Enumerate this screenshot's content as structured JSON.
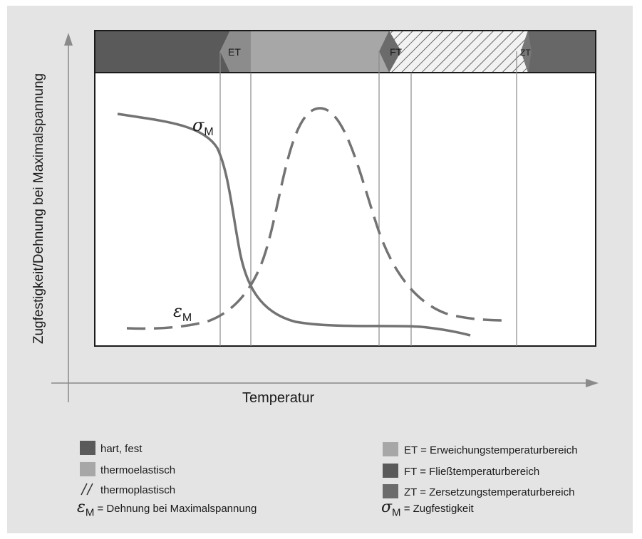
{
  "axes": {
    "y_label": "Zugfestigkeit/Dehnung bei Maximalspannung",
    "x_label": "Temperatur"
  },
  "band_markers": [
    {
      "id": "et",
      "label": "ET"
    },
    {
      "id": "ft",
      "label": "FT"
    },
    {
      "id": "zt",
      "label": "ZT"
    }
  ],
  "curves": {
    "sigma": {
      "symbol": "σ",
      "sub": "M"
    },
    "epsilon": {
      "symbol": "ε",
      "sub": "M"
    }
  },
  "legend": {
    "left": [
      {
        "label": "hart, fest"
      },
      {
        "label": "thermoelastisch"
      },
      {
        "label": "thermoplastisch"
      }
    ],
    "right": [
      {
        "label": "ET = Erweichungstemperaturbereich"
      },
      {
        "label": "FT = Fließtemperaturbereich"
      },
      {
        "label": "ZT = Zersetzungstemperaturbereich"
      }
    ],
    "epsilon_def": {
      "symbol": "ε",
      "sub": "M",
      "text": " = Dehnung bei Maximalspannung"
    },
    "sigma_def": {
      "symbol": "σ",
      "sub": "M",
      "text": " = Zugfestigkeit"
    }
  },
  "colors": {
    "hard": "#5a5a5a",
    "thermoelastic": "#a7a7a7",
    "marker_et": "#8c8c8c",
    "marker_ft": "#6b6b6b",
    "marker_zt": "#777777",
    "curve": "#737373",
    "axis": "#8a8a8a"
  }
}
